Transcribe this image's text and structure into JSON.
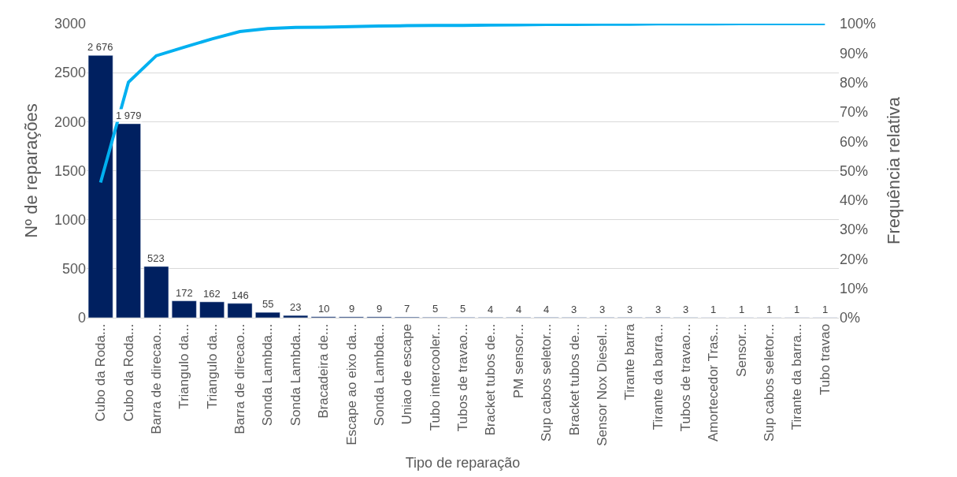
{
  "chart_data": {
    "type": "bar",
    "xlabel": "Tipo de reparação",
    "ylabel": "Nº de reparações",
    "y2label": "Frequência relativa",
    "categories": [
      "Cubo da Roda...",
      "Cubo da Roda...",
      "Barra de direcao...",
      "Triangulo da...",
      "Triangulo da...",
      "Barra de direcao...",
      "Sonda Lambda...",
      "Sonda Lambda...",
      "Bracadeira de...",
      "Escape ao eixo da...",
      "Sonda Lambda...",
      "Uniao de escape",
      "Tubo intercooler...",
      "Tubos de travao...",
      "Bracket tubos de...",
      "PM sensor...",
      "Sup cabos seletor...",
      "Bracket tubos de...",
      "Sensor Nox Diesel...",
      "Tirante barra",
      "Tirante da barra...",
      "Tubos de travao...",
      "Amortecedor Tras...",
      "Sensor...",
      "Sup cabos seletor...",
      "Tirante da barra...",
      "Tubo travao"
    ],
    "series": [
      {
        "color": "#002060",
        "values": [
          2676,
          1979,
          523,
          172,
          162,
          146,
          55,
          23,
          10,
          9,
          9,
          7,
          5,
          5,
          4,
          4,
          4,
          3,
          3,
          3,
          3,
          3,
          1,
          1,
          1,
          1,
          1
        ],
        "value_labels": [
          "2 676",
          "1 979",
          "523",
          "172",
          "162",
          "146",
          "55",
          "23",
          "10",
          "9",
          "9",
          "7",
          "5",
          "5",
          "4",
          "4",
          "4",
          "3",
          "3",
          "3",
          "3",
          "3",
          "1",
          "1",
          "1",
          "1",
          "1"
        ]
      },
      {
        "type": "line",
        "axis": "y2",
        "color": "#00b0f0",
        "values": [
          46.0,
          80.1,
          89.1,
          92.0,
          94.8,
          97.3,
          98.3,
          98.7,
          98.8,
          99.0,
          99.2,
          99.3,
          99.4,
          99.4,
          99.5,
          99.6,
          99.7,
          99.7,
          99.8,
          99.8,
          99.9,
          99.9,
          99.9,
          100,
          100,
          100,
          100
        ]
      }
    ],
    "ylim": [
      0,
      3000
    ],
    "yticks": [
      0,
      500,
      1000,
      1500,
      2000,
      2500,
      3000
    ],
    "y2lim": [
      0,
      100
    ],
    "y2ticks": [
      {
        "value": 0,
        "label": "0%"
      },
      {
        "value": 10,
        "label": "10%"
      },
      {
        "value": 20,
        "label": "20%"
      },
      {
        "value": 30,
        "label": "30%"
      },
      {
        "value": 40,
        "label": "40%"
      },
      {
        "value": 50,
        "label": "50%"
      },
      {
        "value": 60,
        "label": "60%"
      },
      {
        "value": 70,
        "label": "70%"
      },
      {
        "value": 80,
        "label": "80%"
      },
      {
        "value": 90,
        "label": "90%"
      },
      {
        "value": 100,
        "label": "100%"
      }
    ],
    "grid": "y",
    "legend": false,
    "marker": "none",
    "line_style": "solid"
  }
}
